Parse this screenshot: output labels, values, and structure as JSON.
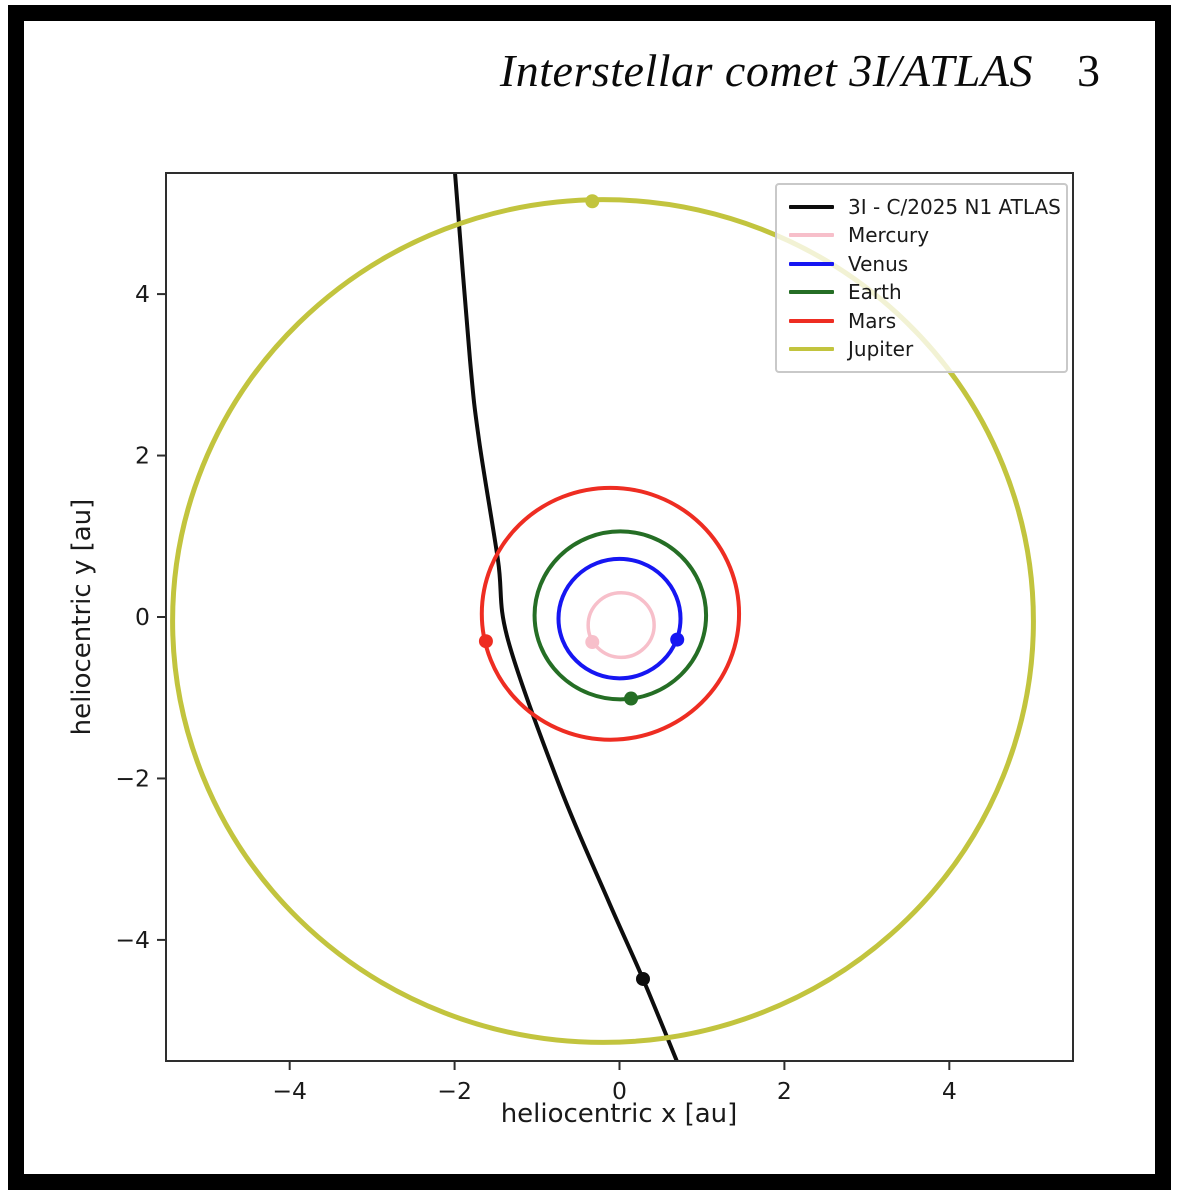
{
  "header": {
    "title": "Interstellar comet 3I/ATLAS",
    "page_number": "3"
  },
  "chart_data": {
    "type": "line",
    "title": "",
    "xlabel": "heliocentric x [au]",
    "ylabel": "heliocentric y [au]",
    "xlim": [
      -5.5,
      5.5
    ],
    "ylim": [
      -5.5,
      5.5
    ],
    "grid": false,
    "legend_position": "upper right",
    "frame_color": "#2e2e2e",
    "xticks": [
      {
        "v": -4,
        "label": "−4"
      },
      {
        "v": -2,
        "label": "−2"
      },
      {
        "v": 0,
        "label": "0"
      },
      {
        "v": 2,
        "label": "2"
      },
      {
        "v": 4,
        "label": "4"
      }
    ],
    "yticks": [
      {
        "v": -4,
        "label": "−4"
      },
      {
        "v": -2,
        "label": "−2"
      },
      {
        "v": 0,
        "label": "0"
      },
      {
        "v": 2,
        "label": "2"
      },
      {
        "v": 4,
        "label": "4"
      }
    ],
    "series": [
      {
        "name": "3I - C/2025 N1 ATLAS",
        "color": "#0d0d0d",
        "kind": "trajectory",
        "width": 4,
        "points": [
          [
            -1.995,
            5.5
          ],
          [
            -1.813,
            3.183
          ],
          [
            -1.704,
            2.193
          ],
          [
            -1.474,
            0.706
          ],
          [
            -1.352,
            -0.285
          ],
          [
            -0.722,
            -2.106
          ],
          [
            -0.139,
            -3.506
          ],
          [
            0.285,
            -4.484
          ],
          [
            0.695,
            -5.5
          ]
        ],
        "marker": [
          0.285,
          -4.484
        ]
      },
      {
        "name": "Mercury",
        "color": "#f7bfca",
        "kind": "orbit",
        "width": 3.5,
        "center": [
          0.02,
          -0.1
        ],
        "radius": 0.4,
        "marker": [
          -0.33,
          -0.31
        ]
      },
      {
        "name": "Venus",
        "color": "#1616f2",
        "kind": "orbit",
        "width": 4,
        "center": [
          0.0,
          -0.02
        ],
        "radius": 0.74,
        "marker": [
          0.7,
          -0.28
        ]
      },
      {
        "name": "Earth",
        "color": "#256e25",
        "kind": "orbit",
        "width": 4,
        "center": [
          0.01,
          0.02
        ],
        "radius": 1.04,
        "marker": [
          0.14,
          -1.01
        ]
      },
      {
        "name": "Mars",
        "color": "#ee2d22",
        "kind": "orbit",
        "width": 4,
        "center": [
          -0.11,
          0.04
        ],
        "radius": 1.56,
        "marker": [
          -1.62,
          -0.3
        ]
      },
      {
        "name": "Jupiter",
        "color": "#c2c43e",
        "kind": "orbit",
        "width": 5,
        "center": [
          -0.2,
          -0.05
        ],
        "radius": 5.22,
        "marker": [
          -0.33,
          5.15
        ]
      }
    ]
  }
}
